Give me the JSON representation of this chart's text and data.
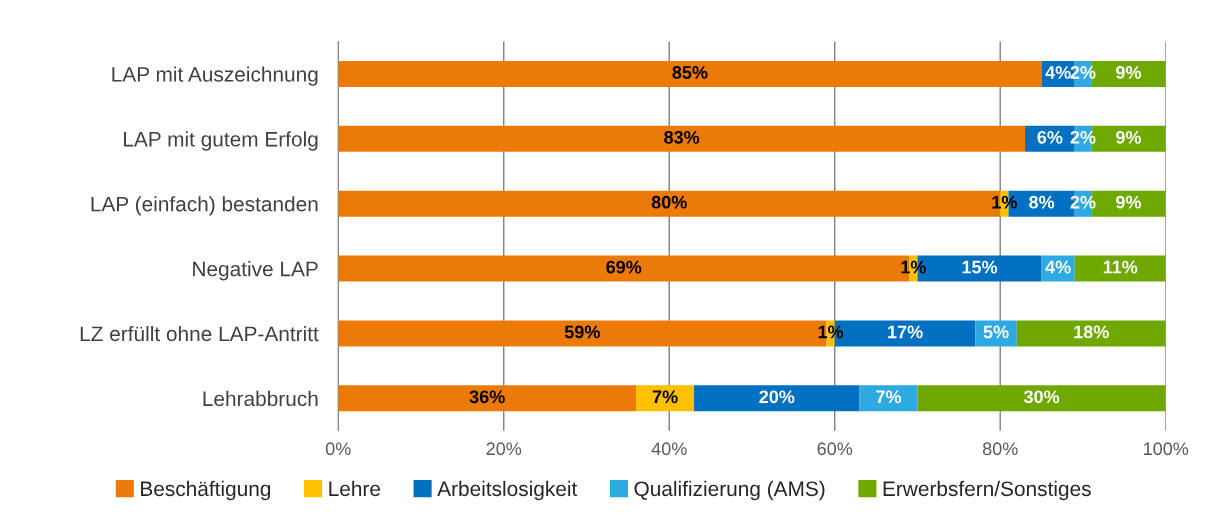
{
  "chart_data": {
    "type": "bar",
    "orientation": "horizontal",
    "stacked": true,
    "categories": [
      "LAP mit Auszeichnung",
      "LAP mit gutem Erfolg",
      "LAP (einfach) bestanden",
      "Negative LAP",
      "LZ erfüllt ohne LAP-Antritt",
      "Lehrabbruch"
    ],
    "series": [
      {
        "name": "Beschäftigung",
        "color": "#ec7a08",
        "values": [
          85,
          83,
          80,
          69,
          59,
          36
        ],
        "value_labels": [
          "85%",
          "83%",
          "80%",
          "69%",
          "59%",
          "36%"
        ]
      },
      {
        "name": "Lehre",
        "color": "#ffc000",
        "values": [
          0,
          0,
          1,
          1,
          1,
          7
        ],
        "value_labels": [
          null,
          null,
          "1%",
          "1%",
          "1%",
          "7%"
        ]
      },
      {
        "name": "Arbeitslosigkeit",
        "color": "#0070c0",
        "values": [
          4,
          6,
          8,
          15,
          17,
          20
        ],
        "value_labels": [
          "4%",
          "6%",
          "8%",
          "15%",
          "17%",
          "20%"
        ]
      },
      {
        "name": "Qualifizierung (AMS)",
        "color": "#2fa9e1",
        "values": [
          2,
          2,
          2,
          4,
          5,
          7
        ],
        "value_labels": [
          "2%",
          "2%",
          "2%",
          "4%",
          "5%",
          "7%"
        ]
      },
      {
        "name": "Erwerbsfern/Sonstiges",
        "color": "#6fa800",
        "values": [
          9,
          9,
          9,
          11,
          18,
          30
        ],
        "value_labels": [
          "9%",
          "9%",
          "9%",
          "11%",
          "18%",
          "30%"
        ]
      }
    ],
    "xlim": [
      0,
      100
    ],
    "xticks": [
      {
        "value": 0,
        "label": "0%"
      },
      {
        "value": 20,
        "label": "20%"
      },
      {
        "value": 40,
        "label": "40%"
      },
      {
        "value": 60,
        "label": "60%"
      },
      {
        "value": 80,
        "label": "80%"
      },
      {
        "value": 100,
        "label": "100%"
      }
    ],
    "grid": "x",
    "legend": "bottom"
  }
}
